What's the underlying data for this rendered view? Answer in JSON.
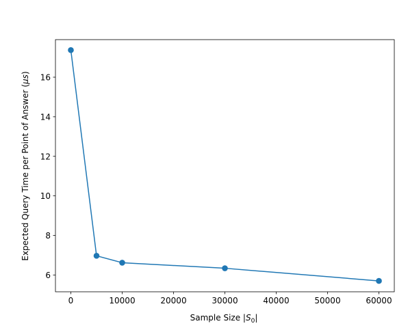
{
  "chart_data": {
    "type": "line",
    "title": "",
    "xlabel": "Sample Size |S₀|",
    "xlabel_parts": {
      "prefix": "Sample Size |",
      "var": "S",
      "sub": "0",
      "suffix": "|"
    },
    "ylabel": "Expected Query Time per Point of Answer (μs)",
    "ylabel_parts": {
      "prefix": "Expected Query Time per Point of Answer (",
      "mu": "μ",
      "unit": "s",
      "suffix": ")"
    },
    "xlim": [
      -3000,
      63000
    ],
    "ylim": [
      5.15,
      17.9
    ],
    "xticks": [
      0,
      10000,
      20000,
      30000,
      40000,
      50000,
      60000
    ],
    "xtick_labels": [
      "0",
      "10000",
      "20000",
      "30000",
      "40000",
      "50000",
      "60000"
    ],
    "yticks": [
      6,
      8,
      10,
      12,
      14,
      16
    ],
    "ytick_labels": [
      "6",
      "8",
      "10",
      "12",
      "14",
      "16"
    ],
    "grid": false,
    "series": [
      {
        "x": [
          0,
          5000,
          10000,
          30000,
          60000
        ],
        "y": [
          17.37,
          6.97,
          6.62,
          6.34,
          5.7
        ],
        "color": "#1f77b4",
        "marker": "circle"
      }
    ]
  }
}
